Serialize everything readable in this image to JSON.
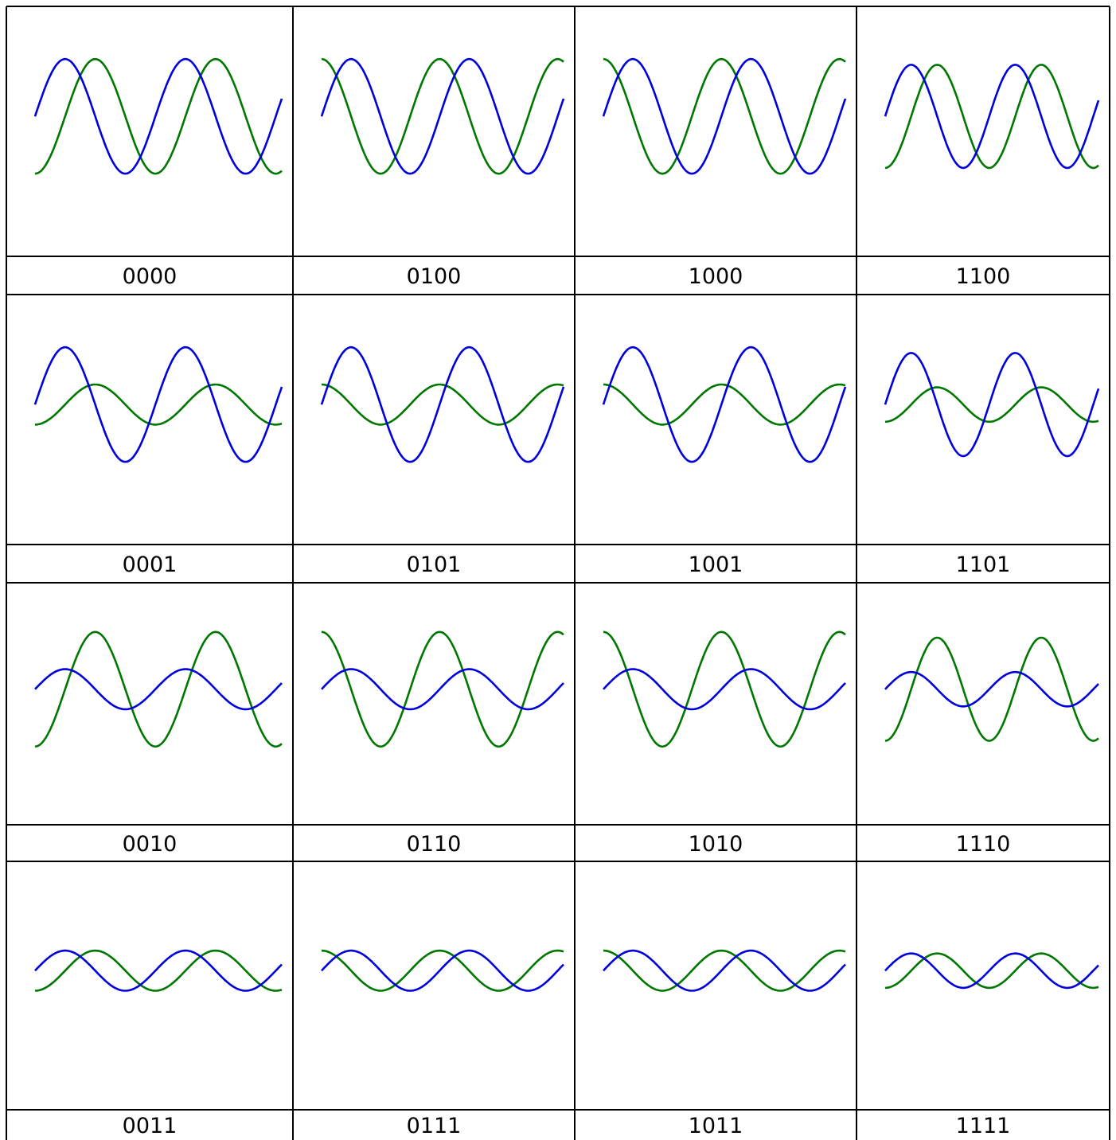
{
  "colors": {
    "blue": "#0000dd",
    "green": "#007700",
    "border": "#000000"
  },
  "chart_data": {
    "type": "line",
    "layout": "4x4 grid of small multiples (column-major order)",
    "panels": [
      {
        "label": "0000",
        "blue_amplitude": 1.0,
        "green_amplitude": 1.0,
        "phase_offset": "green lags blue"
      },
      {
        "label": "0001",
        "blue_amplitude": 1.0,
        "green_amplitude": 0.35,
        "phase_offset": "green lags blue"
      },
      {
        "label": "0010",
        "blue_amplitude": 0.35,
        "green_amplitude": 1.0,
        "phase_offset": "green lags blue"
      },
      {
        "label": "0011",
        "blue_amplitude": 0.35,
        "green_amplitude": 0.35,
        "phase_offset": "green lags blue"
      },
      {
        "label": "0100",
        "blue_amplitude": 1.0,
        "green_amplitude": 1.0,
        "phase_offset": "green leads blue"
      },
      {
        "label": "0101",
        "blue_amplitude": 1.0,
        "green_amplitude": 0.35,
        "phase_offset": "green leads blue"
      },
      {
        "label": "0110",
        "blue_amplitude": 0.35,
        "green_amplitude": 1.0,
        "phase_offset": "green leads blue"
      },
      {
        "label": "0111",
        "blue_amplitude": 0.35,
        "green_amplitude": 0.35,
        "phase_offset": "green leads blue"
      },
      {
        "label": "1000",
        "blue_amplitude": 1.0,
        "green_amplitude": 1.0,
        "phase_offset": "green leads blue"
      },
      {
        "label": "1001",
        "blue_amplitude": 1.0,
        "green_amplitude": 0.35,
        "phase_offset": "green leads blue"
      },
      {
        "label": "1010",
        "blue_amplitude": 0.35,
        "green_amplitude": 1.0,
        "phase_offset": "green leads blue"
      },
      {
        "label": "1011",
        "blue_amplitude": 0.35,
        "green_amplitude": 0.35,
        "phase_offset": "green leads blue"
      },
      {
        "label": "1100",
        "blue_amplitude": 0.9,
        "green_amplitude": 0.9,
        "phase_offset": "green lags blue"
      },
      {
        "label": "1101",
        "blue_amplitude": 0.9,
        "green_amplitude": 0.3,
        "phase_offset": "green lags blue"
      },
      {
        "label": "1110",
        "blue_amplitude": 0.3,
        "green_amplitude": 0.9,
        "phase_offset": "green lags blue"
      },
      {
        "label": "1111",
        "blue_amplitude": 0.3,
        "green_amplitude": 0.3,
        "phase_offset": "green lags blue"
      }
    ]
  }
}
